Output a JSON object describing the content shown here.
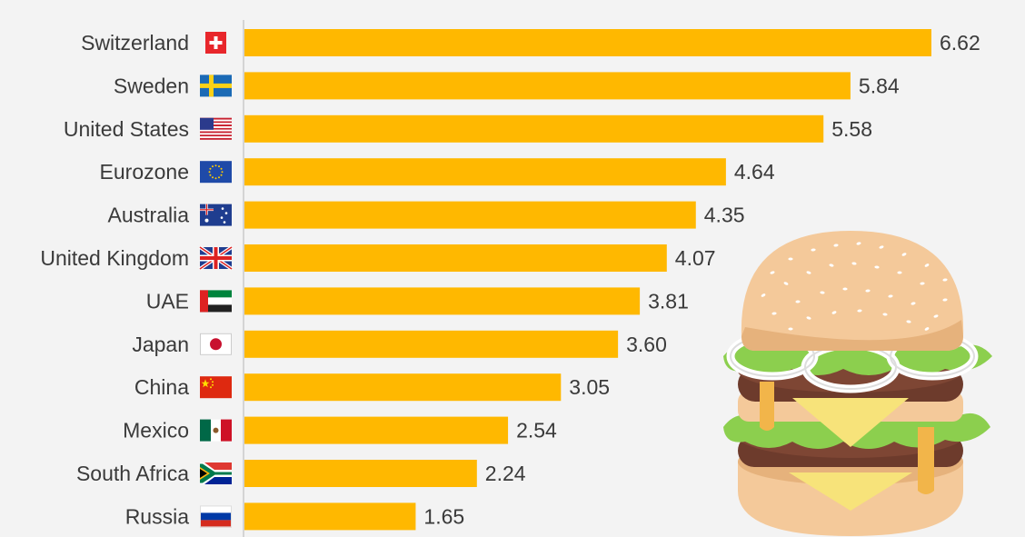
{
  "chart_data": {
    "type": "bar",
    "orientation": "horizontal",
    "categories": [
      "Switzerland",
      "Sweden",
      "United States",
      "Eurozone",
      "Australia",
      "United Kingdom",
      "UAE",
      "Japan",
      "China",
      "Mexico",
      "South Africa",
      "Russia"
    ],
    "values": [
      6.62,
      5.84,
      5.58,
      4.64,
      4.35,
      4.07,
      3.81,
      3.6,
      3.05,
      2.54,
      2.24,
      1.65
    ],
    "value_labels": [
      "6.62",
      "5.84",
      "5.58",
      "4.64",
      "4.35",
      "4.07",
      "3.81",
      "3.60",
      "3.05",
      "2.54",
      "2.24",
      "1.65"
    ],
    "flags": [
      "switzerland-flag-icon",
      "sweden-flag-icon",
      "united-states-flag-icon",
      "eurozone-flag-icon",
      "australia-flag-icon",
      "united-kingdom-flag-icon",
      "uae-flag-icon",
      "japan-flag-icon",
      "china-flag-icon",
      "mexico-flag-icon",
      "south-africa-flag-icon",
      "russia-flag-icon"
    ],
    "xlim": [
      0,
      6.62
    ],
    "bar_color": "#ffb800",
    "grid": false,
    "title": "",
    "xlabel": "",
    "ylabel": ""
  },
  "decoration": {
    "illustration": "burger-illustration"
  }
}
